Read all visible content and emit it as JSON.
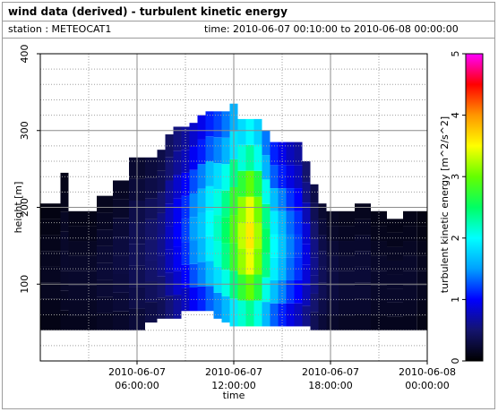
{
  "header": {
    "title": "wind data (derived) - turbulent kinetic energy",
    "station_label": "station : METEOCAT1",
    "time_range": "time: 2010-06-07 00:10:00 to 2010-06-08 00:00:00"
  },
  "chart_data": {
    "type": "heatmap",
    "xlabel": "time",
    "ylabel": "height [m]",
    "colorbar_label": "turbulent kinetic energy [m^2/s^2]",
    "x_range_hours": [
      0,
      24
    ],
    "ylim": [
      0,
      400
    ],
    "clim": [
      0,
      5
    ],
    "x_ticks": [
      {
        "hour": 6,
        "line1": "2010-06-07",
        "line2": "06:00:00"
      },
      {
        "hour": 12,
        "line1": "2010-06-07",
        "line2": "12:00:00"
      },
      {
        "hour": 18,
        "line1": "2010-06-07",
        "line2": "18:00:00"
      },
      {
        "hour": 24,
        "line1": "2010-06-08",
        "line2": "00:00:00"
      }
    ],
    "y_ticks": [
      100,
      200,
      300,
      400
    ],
    "colorbar_ticks": [
      0,
      1,
      2,
      3,
      4,
      5
    ],
    "grid": true,
    "colormap": [
      "#000000",
      "#14146e",
      "#0000ff",
      "#00a0ff",
      "#00ffff",
      "#00ff64",
      "#64ff00",
      "#ffff00",
      "#ff9600",
      "#ff0000",
      "#ff00ff"
    ],
    "profiles": [
      {
        "hour": 0.5,
        "top": 205,
        "bottom": 40,
        "tke": 0.15
      },
      {
        "hour": 1.0,
        "top": 205,
        "bottom": 40,
        "tke": 0.15
      },
      {
        "hour": 1.5,
        "top": 245,
        "bottom": 40,
        "tke": 0.2
      },
      {
        "hour": 2.0,
        "top": 195,
        "bottom": 40,
        "tke": 0.2
      },
      {
        "hour": 3.0,
        "top": 195,
        "bottom": 40,
        "tke": 0.2
      },
      {
        "hour": 4.0,
        "top": 215,
        "bottom": 40,
        "tke": 0.25
      },
      {
        "hour": 5.0,
        "top": 235,
        "bottom": 40,
        "tke": 0.3
      },
      {
        "hour": 6.0,
        "top": 265,
        "bottom": 40,
        "tke": 0.4
      },
      {
        "hour": 7.0,
        "top": 265,
        "bottom": 50,
        "tke": 0.5
      },
      {
        "hour": 7.5,
        "top": 275,
        "bottom": 55,
        "tke": 0.6
      },
      {
        "hour": 8.0,
        "top": 295,
        "bottom": 55,
        "tke": 0.8
      },
      {
        "hour": 8.5,
        "top": 305,
        "bottom": 55,
        "tke": 1.0
      },
      {
        "hour": 9.0,
        "top": 305,
        "bottom": 65,
        "tke": 1.2
      },
      {
        "hour": 9.5,
        "top": 310,
        "bottom": 65,
        "tke": 1.5
      },
      {
        "hour": 10.0,
        "top": 320,
        "bottom": 65,
        "tke": 1.7
      },
      {
        "hour": 10.5,
        "top": 325,
        "bottom": 65,
        "tke": 2.0
      },
      {
        "hour": 11.0,
        "top": 325,
        "bottom": 55,
        "tke": 2.2
      },
      {
        "hour": 11.5,
        "top": 325,
        "bottom": 50,
        "tke": 2.5
      },
      {
        "hour": 12.0,
        "top": 335,
        "bottom": 45,
        "tke": 2.9
      },
      {
        "hour": 12.5,
        "top": 315,
        "bottom": 45,
        "tke": 3.3
      },
      {
        "hour": 13.0,
        "top": 315,
        "bottom": 45,
        "tke": 3.6
      },
      {
        "hour": 13.5,
        "top": 315,
        "bottom": 45,
        "tke": 3.2
      },
      {
        "hour": 14.0,
        "top": 300,
        "bottom": 45,
        "tke": 2.5
      },
      {
        "hour": 14.5,
        "top": 285,
        "bottom": 45,
        "tke": 2.0
      },
      {
        "hour": 15.0,
        "top": 285,
        "bottom": 45,
        "tke": 1.7
      },
      {
        "hour": 15.5,
        "top": 285,
        "bottom": 45,
        "tke": 1.4
      },
      {
        "hour": 16.0,
        "top": 285,
        "bottom": 45,
        "tke": 1.2
      },
      {
        "hour": 16.5,
        "top": 260,
        "bottom": 45,
        "tke": 0.9
      },
      {
        "hour": 17.0,
        "top": 230,
        "bottom": 40,
        "tke": 0.6
      },
      {
        "hour": 17.5,
        "top": 205,
        "bottom": 40,
        "tke": 0.4
      },
      {
        "hour": 18.0,
        "top": 195,
        "bottom": 40,
        "tke": 0.3
      },
      {
        "hour": 19.0,
        "top": 195,
        "bottom": 40,
        "tke": 0.25
      },
      {
        "hour": 20.0,
        "top": 205,
        "bottom": 40,
        "tke": 0.25
      },
      {
        "hour": 21.0,
        "top": 195,
        "bottom": 40,
        "tke": 0.2
      },
      {
        "hour": 22.0,
        "top": 185,
        "bottom": 40,
        "tke": 0.2
      },
      {
        "hour": 23.0,
        "top": 195,
        "bottom": 40,
        "tke": 0.2
      },
      {
        "hour": 23.75,
        "top": 195,
        "bottom": 40,
        "tke": 0.15
      }
    ]
  }
}
